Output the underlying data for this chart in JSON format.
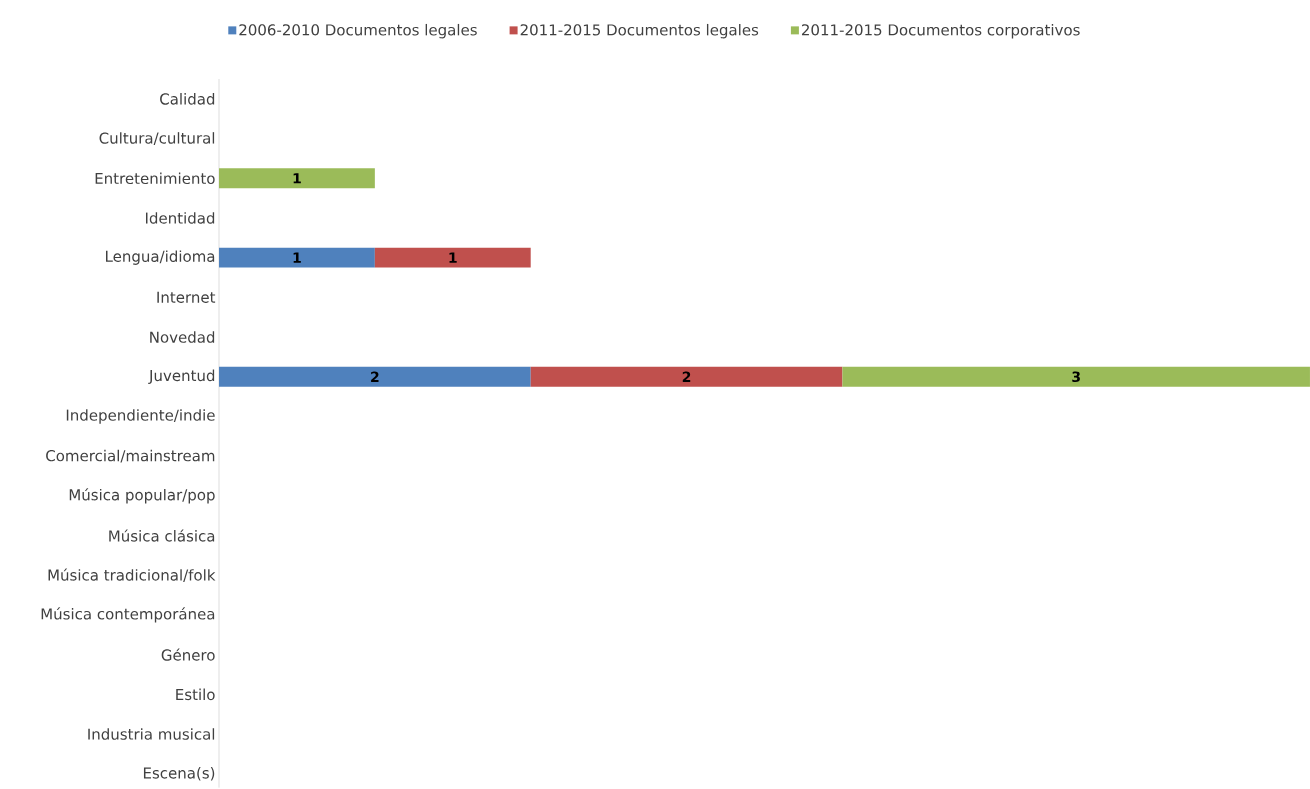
{
  "chart_data": {
    "type": "bar",
    "orientation": "horizontal",
    "stacked": true,
    "data_labels": true,
    "legend": "top",
    "categories": [
      "Calidad",
      "Cultura/cultural",
      "Entretenimiento",
      "Identidad",
      "Lengua/idioma",
      "Internet",
      "Novedad",
      "Juventud",
      "Independiente/indie",
      "Comercial/mainstream",
      "Música popular/pop",
      "Música clásica",
      "Música tradicional/folk",
      "Música contemporánea",
      "Género",
      "Estilo",
      "Industria musical",
      "Escena(s)"
    ],
    "series": [
      {
        "name": "2006-2010 Documentos legales",
        "color": "#4f81bd",
        "values": [
          null,
          null,
          null,
          null,
          1,
          null,
          null,
          2,
          null,
          null,
          null,
          null,
          null,
          null,
          null,
          null,
          null,
          null
        ]
      },
      {
        "name": "2011-2015 Documentos legales",
        "color": "#c0504d",
        "values": [
          null,
          null,
          null,
          null,
          1,
          null,
          null,
          2,
          null,
          null,
          null,
          null,
          null,
          null,
          null,
          null,
          null,
          null
        ]
      },
      {
        "name": "2011-2015 Documentos corporativos",
        "color": "#9bbb59",
        "values": [
          null,
          null,
          1,
          null,
          null,
          null,
          null,
          3,
          null,
          null,
          null,
          null,
          null,
          null,
          null,
          null,
          null,
          null
        ]
      }
    ]
  }
}
